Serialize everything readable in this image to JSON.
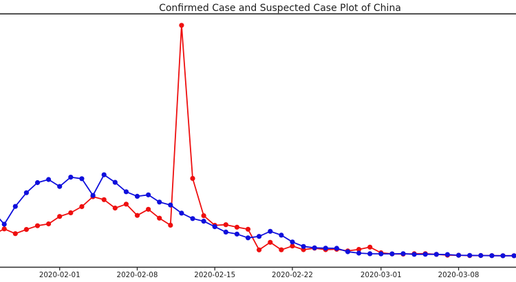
{
  "chart_data": {
    "type": "line",
    "title": "Confirmed Case and Suspected Case Plot of China",
    "xlabel": "",
    "ylabel": "",
    "grid": false,
    "legend_position": "none",
    "marker": "o",
    "background_color": "#ffffff",
    "spine_color": "#2a2a2a",
    "text_color": "#1c1c1c",
    "ylim": [
      -750,
      15910
    ],
    "x_visible_range": [
      "2020-01-26",
      "2020-03-13"
    ],
    "x_tick_labels": [
      "2020-02-01",
      "2020-02-08",
      "2020-02-15",
      "2020-02-22",
      "2020-03-01",
      "2020-03-08"
    ],
    "dates": [
      "2020-01-26",
      "2020-01-27",
      "2020-01-28",
      "2020-01-29",
      "2020-01-30",
      "2020-01-31",
      "2020-02-01",
      "2020-02-02",
      "2020-02-03",
      "2020-02-04",
      "2020-02-05",
      "2020-02-06",
      "2020-02-07",
      "2020-02-08",
      "2020-02-09",
      "2020-02-10",
      "2020-02-11",
      "2020-02-12",
      "2020-02-13",
      "2020-02-14",
      "2020-02-15",
      "2020-02-16",
      "2020-02-17",
      "2020-02-18",
      "2020-02-19",
      "2020-02-20",
      "2020-02-21",
      "2020-02-22",
      "2020-02-23",
      "2020-02-24",
      "2020-02-25",
      "2020-02-26",
      "2020-02-27",
      "2020-02-28",
      "2020-02-29",
      "2020-03-01",
      "2020-03-02",
      "2020-03-03",
      "2020-03-04",
      "2020-03-05",
      "2020-03-06",
      "2020-03-07",
      "2020-03-08",
      "2020-03-09",
      "2020-03-10",
      "2020-03-11",
      "2020-03-12",
      "2020-03-13"
    ],
    "series": [
      {
        "name": "Confirmed Case",
        "slug": "confirmed-case",
        "color": "#ee0f0f",
        "values": [
          1400,
          1771,
          1459,
          1737,
          1982,
          2102,
          2590,
          2829,
          3235,
          3887,
          3694,
          3143,
          3399,
          2656,
          3062,
          2478,
          2015,
          15152,
          5090,
          2641,
          2009,
          2048,
          1886,
          1749,
          394,
          889,
          397,
          648,
          409,
          508,
          406,
          433,
          327,
          427,
          573,
          202,
          125,
          119,
          139,
          143,
          99,
          44,
          40,
          19,
          24,
          15,
          8,
          11
        ]
      },
      {
        "name": "Suspected Case",
        "slug": "suspected-case",
        "color": "#0f0fdc",
        "values": [
          2900,
          2077,
          3248,
          4148,
          4812,
          5019,
          4562,
          5173,
          5072,
          3971,
          5328,
          4833,
          4214,
          3916,
          4008,
          3536,
          3342,
          2807,
          2450,
          2277,
          1918,
          1563,
          1432,
          1185,
          1277,
          1614,
          1361,
          913,
          620,
          530,
          508,
          497,
          271,
          181,
          141,
          132,
          129,
          143,
          99,
          102,
          99,
          84,
          42,
          31,
          24,
          14,
          10,
          8
        ]
      }
    ]
  }
}
